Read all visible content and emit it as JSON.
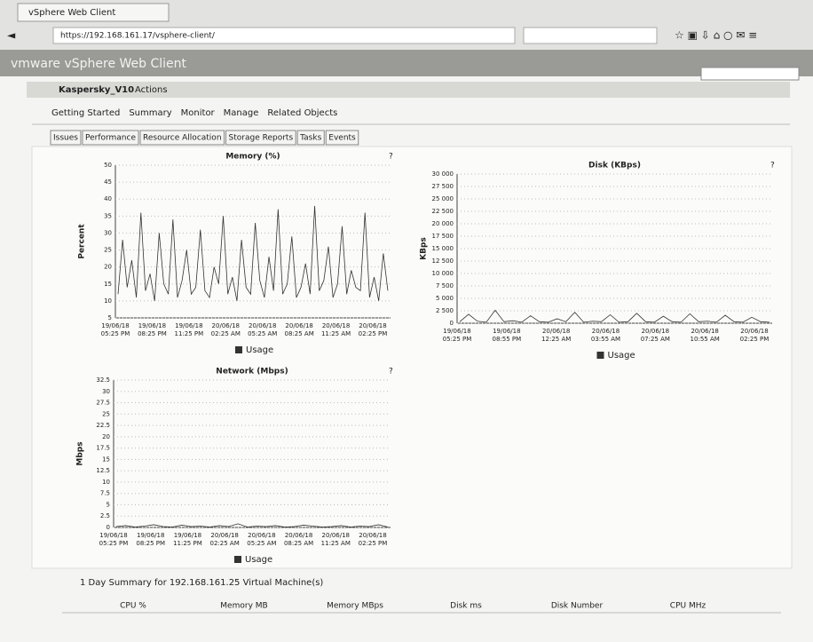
{
  "browser": {
    "tab_title": "vSphere Web Client",
    "url": "https://192.168.161.17/vsphere-client/"
  },
  "header": {
    "title": "vmware vSphere Web Client"
  },
  "object": {
    "name": "Kaspersky_V10",
    "actions": "Actions"
  },
  "nav_tabs": [
    "Getting Started",
    "Summary",
    "Monitor",
    "Manage",
    "Related Objects"
  ],
  "sub_tabs": [
    "Issues",
    "Performance",
    "Resource Allocation",
    "Storage Reports",
    "Tasks",
    "Events"
  ],
  "charts": [
    {
      "type": "line",
      "title": "Memory (%)",
      "y_label": "Percent",
      "color": "#333333",
      "ylim": [
        5,
        50
      ],
      "yticks": [
        5,
        10,
        15,
        20,
        25,
        30,
        35,
        40,
        45,
        50
      ],
      "grid": true,
      "x_labels": [
        [
          "19/06/18",
          "05:25 PM"
        ],
        [
          "19/06/18",
          "08:25 PM"
        ],
        [
          "19/06/18",
          "11:25 PM"
        ],
        [
          "20/06/18",
          "02:25 AM"
        ],
        [
          "20/06/18",
          "05:25 AM"
        ],
        [
          "20/06/18",
          "08:25 AM"
        ],
        [
          "20/06/18",
          "11:25 AM"
        ],
        [
          "20/06/18",
          "02:25 PM"
        ]
      ],
      "series": [
        {
          "name": "Usage",
          "color": "#333333",
          "values": [
            12,
            28,
            14,
            22,
            11,
            36,
            13,
            18,
            10,
            30,
            15,
            12,
            34,
            11,
            16,
            25,
            12,
            14,
            31,
            13,
            11,
            20,
            15,
            35,
            12,
            17,
            10,
            28,
            14,
            12,
            33,
            16,
            11,
            23,
            13,
            37,
            12,
            15,
            29,
            11,
            14,
            21,
            12,
            38,
            13,
            16,
            26,
            11,
            15,
            32,
            12,
            19,
            14,
            13,
            36,
            11,
            17,
            10,
            24,
            13
          ]
        }
      ]
    },
    {
      "type": "line",
      "title": "Disk (KBps)",
      "y_label": "KBps",
      "color": "#333333",
      "ylim": [
        0,
        30000
      ],
      "yticks": [
        0,
        {
          "value": 2500,
          "label": "2 500"
        },
        {
          "value": 5000,
          "label": "5 000"
        },
        {
          "value": 7500,
          "label": "7 500"
        },
        {
          "value": 10000,
          "label": "10 000"
        },
        {
          "value": 12500,
          "label": "12 500"
        },
        {
          "value": 15000,
          "label": "15 000"
        },
        {
          "value": 17500,
          "label": "17 500"
        },
        {
          "value": 20000,
          "label": "20 000"
        },
        {
          "value": 22500,
          "label": "22 500"
        },
        {
          "value": 25000,
          "label": "25 000"
        },
        {
          "value": 27500,
          "label": "27 500"
        },
        {
          "value": 30000,
          "label": "30 000"
        }
      ],
      "grid": true,
      "x_labels": [
        [
          "19/06/18",
          "05:25 PM"
        ],
        [
          "19/06/18",
          "08:55 PM"
        ],
        [
          "20/06/18",
          "12:25 AM"
        ],
        [
          "20/06/18",
          "03:55 AM"
        ],
        [
          "20/06/18",
          "07:25 AM"
        ],
        [
          "20/06/18",
          "10:55 AM"
        ],
        [
          "20/06/18",
          "02:25 PM"
        ]
      ],
      "series": [
        {
          "name": "Usage",
          "color": "#333333",
          "values": [
            300,
            1800,
            400,
            200,
            2600,
            300,
            500,
            200,
            1500,
            300,
            200,
            900,
            300,
            2200,
            200,
            400,
            300,
            1700,
            200,
            300,
            2000,
            300,
            200,
            1400,
            300,
            200,
            1900,
            300,
            400,
            200,
            1600,
            300,
            200,
            1200,
            300,
            200
          ]
        }
      ]
    },
    {
      "type": "line",
      "title": "Network (Mbps)",
      "y_label": "Mbps",
      "color": "#333333",
      "ylim": [
        0,
        32.5
      ],
      "yticks": [
        0,
        2.5,
        5,
        7.5,
        10,
        12.5,
        15,
        17.5,
        20,
        22.5,
        25,
        27.5,
        30,
        32.5
      ],
      "grid": true,
      "x_labels": [
        [
          "19/06/18",
          "05:25 PM"
        ],
        [
          "19/06/18",
          "08:25 PM"
        ],
        [
          "19/06/18",
          "11:25 PM"
        ],
        [
          "20/06/18",
          "02:25 AM"
        ],
        [
          "20/06/18",
          "05:25 AM"
        ],
        [
          "20/06/18",
          "08:25 AM"
        ],
        [
          "20/06/18",
          "11:25 AM"
        ],
        [
          "20/06/18",
          "02:25 PM"
        ]
      ],
      "series": [
        {
          "name": "Usage",
          "color": "#333333",
          "values": [
            0.2,
            0.4,
            0.1,
            0.3,
            0.6,
            0.2,
            0.1,
            0.5,
            0.2,
            0.3,
            0.1,
            0.4,
            0.2,
            0.8,
            0.1,
            0.3,
            0.2,
            0.4,
            0.1,
            0.2,
            0.5,
            0.3,
            0.1,
            0.2,
            0.4,
            0.1,
            0.3,
            0.2,
            0.6,
            0.1
          ]
        }
      ]
    }
  ],
  "summary": {
    "title": "1 Day Summary for 192.168.161.25 Virtual Machine(s)",
    "columns": [
      "CPU %",
      "Memory MB",
      "Memory MBps",
      "Disk ms",
      "Disk Number",
      "CPU MHz"
    ]
  }
}
